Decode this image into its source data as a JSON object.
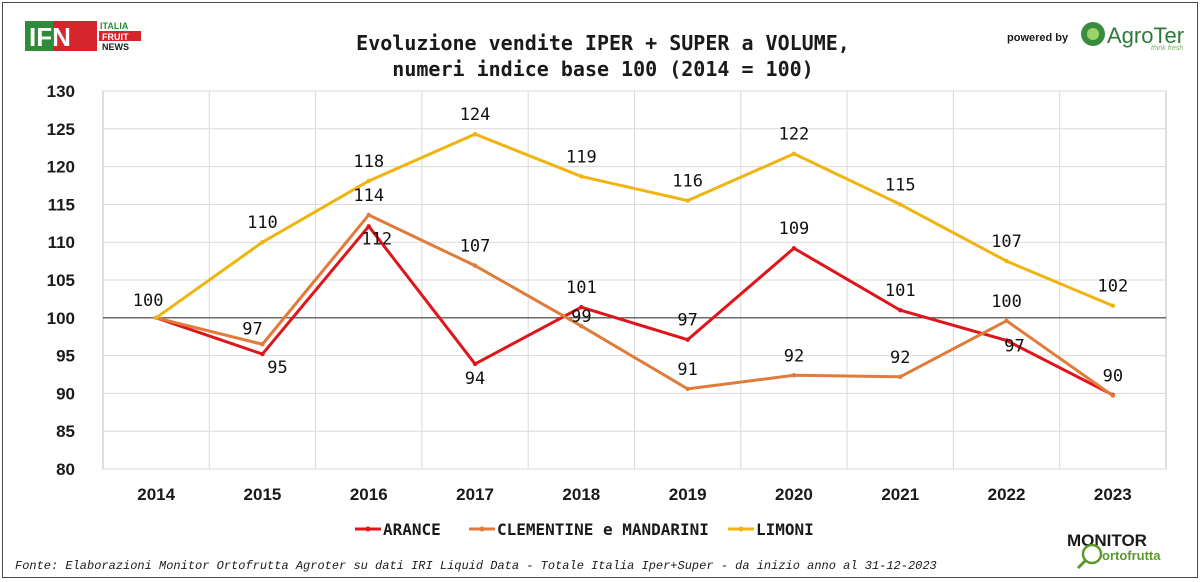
{
  "header": {
    "title_line1": "Evoluzione vendite IPER + SUPER a VOLUME,",
    "title_line2": "numeri indice base 100 (2014 = 100)",
    "powered_by": "powered by",
    "agroter_name": "AgroTer",
    "agroter_tagline": "think fresh"
  },
  "ifn_logo": {
    "letters": "IFN",
    "line1": "ITALIA",
    "line2": "FRUIT",
    "line3": "NEWS",
    "colors": {
      "green": "#2e8b3a",
      "red": "#d7262b"
    }
  },
  "monitor_logo": {
    "word1": "MONITOR",
    "word2": "ortofrutta"
  },
  "footer": {
    "source": "Fonte: Elaborazioni Monitor Ortofrutta Agroter su dati IRI Liquid Data - Totale Italia Iper+Super -  da inizio anno al 31-12-2023"
  },
  "chart_data": {
    "type": "line",
    "title": "Evoluzione vendite IPER + SUPER a VOLUME, numeri indice base 100 (2014 = 100)",
    "xlabel": "",
    "ylabel": "",
    "ylim": [
      80,
      130
    ],
    "y_ticks": [
      80,
      85,
      90,
      95,
      100,
      105,
      110,
      115,
      120,
      125,
      130
    ],
    "grid": "vertical and horizontal gridlines",
    "reference_line": 100,
    "legend_placement": "bottom",
    "x": [
      "2014",
      "2015",
      "2016",
      "2017",
      "2018",
      "2019",
      "2020",
      "2021",
      "2022",
      "2023"
    ],
    "series": [
      {
        "name": "ARANCE",
        "color": "#e0141b",
        "values": [
          100,
          95.2,
          112.1,
          93.9,
          101.4,
          97.1,
          109.2,
          101.0,
          97.0,
          89.8
        ],
        "labels": [
          "",
          "95",
          "112",
          "94",
          "101",
          "97",
          "109",
          "101",
          "97",
          ""
        ]
      },
      {
        "name": "CLEMENTINE e MANDARINI",
        "color": "#e07b39",
        "values": [
          100,
          96.5,
          113.6,
          106.9,
          98.9,
          90.6,
          92.4,
          92.2,
          99.6,
          89.7
        ],
        "labels": [
          "",
          "97",
          "114",
          "107",
          "99",
          "91",
          "92",
          "92",
          "100",
          "90"
        ]
      },
      {
        "name": "LIMONI",
        "color": "#f0b410",
        "values": [
          100,
          110.0,
          118.1,
          124.3,
          118.7,
          115.5,
          121.7,
          115.0,
          107.5,
          101.6
        ],
        "labels": [
          "100",
          "110",
          "118",
          "124",
          "119",
          "116",
          "122",
          "115",
          "107",
          "102"
        ]
      }
    ]
  }
}
